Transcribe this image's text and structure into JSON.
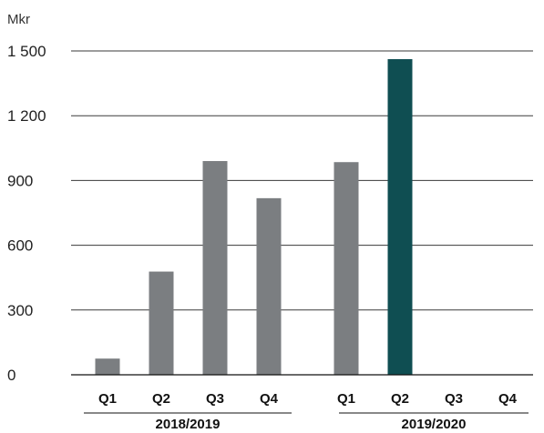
{
  "chart_data": {
    "type": "bar",
    "unit_label": "Mkr",
    "y_ticks": [
      "0",
      "300",
      "600",
      "900",
      "1 200",
      "1 500"
    ],
    "y_tick_values": [
      0,
      300,
      600,
      900,
      1200,
      1500
    ],
    "ylim": [
      0,
      1500
    ],
    "grid": true,
    "groups": [
      {
        "label": "2018/2019",
        "categories": [
          "Q1",
          "Q2",
          "Q3",
          "Q4"
        ],
        "values": [
          75,
          478,
          990,
          818
        ]
      },
      {
        "label": "2019/2020",
        "categories": [
          "Q1",
          "Q2",
          "Q3",
          "Q4"
        ],
        "values": [
          985,
          1462,
          null,
          null
        ]
      }
    ],
    "colors": {
      "default": "#7b7e81",
      "highlight": "#0f4e52"
    },
    "highlight": {
      "group": 1,
      "index": 1
    }
  }
}
